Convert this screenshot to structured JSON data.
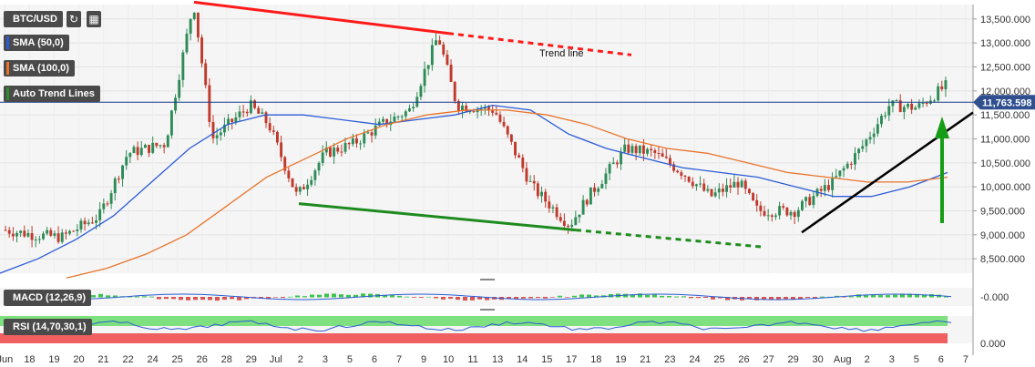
{
  "symbol": "BTC/USD",
  "legend": [
    {
      "label": "SMA (50,0)",
      "color": "#2b5cd6"
    },
    {
      "label": "SMA (100,0)",
      "color": "#e8742b"
    },
    {
      "label": "Auto Trend Lines",
      "color": "#2e8b2e"
    }
  ],
  "macd_label": "MACD (12,26,9)",
  "rsi_label": "RSI (14,70,30,1)",
  "colors": {
    "up": "#2e8b57",
    "down": "#c0392b",
    "sma50": "#2b5cd6",
    "sma100": "#e8742b",
    "resistance": "#ff1a1a",
    "support": "#1e8b1e",
    "channel": "#000000",
    "price_line": "#1a3a8a"
  },
  "chart_data": {
    "type": "candlestick",
    "symbol": "BTC/USD",
    "current_price": "11,763.598",
    "y_ticks": [
      "13,500.000",
      "13,000.000",
      "12,500.000",
      "12,000.000",
      "11,500.000",
      "11,000.000",
      "10,500.000",
      "10,000.000",
      "9,500.000",
      "9,000.000",
      "8,500.000"
    ],
    "ylim": [
      8200,
      13800
    ],
    "x_ticks": [
      "Jun",
      "18",
      "19",
      "20",
      "21",
      "22",
      "24",
      "25",
      "26",
      "28",
      "29",
      "Jul",
      "2",
      "3",
      "5",
      "6",
      "7",
      "9",
      "10",
      "11",
      "13",
      "14",
      "15",
      "17",
      "18",
      "19",
      "21",
      "23",
      "24",
      "25",
      "26",
      "27",
      "29",
      "30",
      "Aug",
      "2",
      "3",
      "5",
      "6",
      "7"
    ],
    "annotation": "Trend line",
    "sma50": [
      8200,
      8500,
      8900,
      9400,
      10100,
      10800,
      11300,
      11500,
      11500,
      11400,
      11300,
      11400,
      11500,
      11700,
      11600,
      11100,
      10800,
      10600,
      10400,
      10300,
      10200,
      10000,
      9800,
      9800,
      10000,
      10300
    ],
    "sma100": [
      8100,
      8300,
      8600,
      9000,
      9600,
      10200,
      10600,
      11000,
      11300,
      11500,
      11600,
      11600,
      11500,
      11300,
      11000,
      10800,
      10700,
      10500,
      10300,
      10200,
      10100,
      10100,
      10200
    ],
    "macd_value": "-0.000",
    "rsi_value": "0.000",
    "trend_lines": {
      "resistance": [
        13850,
        13200,
        12750
      ],
      "support": [
        9650,
        9100,
        8750
      ],
      "uptrend": [
        9050,
        11550
      ]
    }
  }
}
